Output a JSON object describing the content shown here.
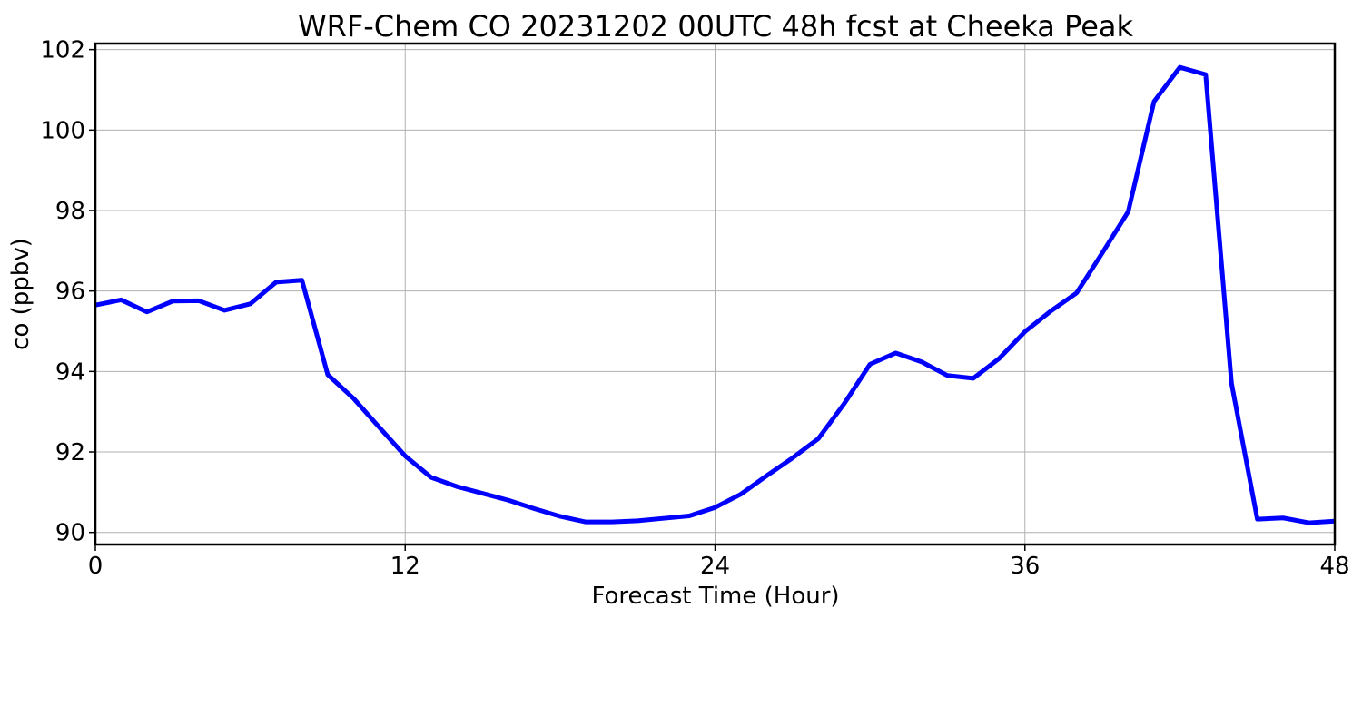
{
  "chart_data": {
    "type": "line",
    "title": "WRF-Chem CO  20231202 00UTC 48h fcst at Cheeka Peak",
    "xlabel": "Forecast Time (Hour)",
    "ylabel": "co  (ppbv)",
    "xlim": [
      0,
      48
    ],
    "ylim": [
      89.7,
      102.15
    ],
    "xticks": [
      0,
      12,
      24,
      36,
      48
    ],
    "xtick_labels": [
      "0",
      "12",
      "24",
      "36",
      "48"
    ],
    "yticks": [
      90,
      92,
      94,
      96,
      98,
      100,
      102
    ],
    "ytick_labels": [
      "90",
      "92",
      "94",
      "96",
      "98",
      "100",
      "102"
    ],
    "grid": true,
    "color": "#0000ff",
    "series": [
      {
        "x": [
          0,
          1,
          2,
          3,
          4,
          5,
          6,
          7,
          8,
          9,
          10,
          11,
          12,
          13,
          14,
          15,
          16,
          17,
          18,
          19,
          20,
          21,
          22,
          23,
          24,
          25,
          26,
          27,
          28,
          29,
          30,
          31,
          32,
          33,
          34,
          35,
          36,
          37,
          38,
          39,
          40,
          41,
          42,
          43,
          44,
          45,
          46,
          47,
          48
        ],
        "values": [
          95.65,
          95.78,
          95.48,
          95.75,
          95.76,
          95.52,
          95.68,
          96.22,
          96.27,
          93.92,
          93.33,
          92.61,
          91.9,
          91.37,
          91.14,
          90.97,
          90.8,
          90.59,
          90.4,
          90.26,
          90.26,
          90.29,
          90.35,
          90.41,
          90.62,
          90.95,
          91.41,
          91.85,
          92.33,
          93.2,
          94.18,
          94.46,
          94.24,
          93.9,
          93.83,
          94.32,
          94.99,
          95.5,
          95.95,
          96.95,
          97.97,
          100.71,
          101.56,
          101.38,
          93.71,
          90.33,
          90.36,
          90.24,
          90.28
        ]
      }
    ]
  }
}
